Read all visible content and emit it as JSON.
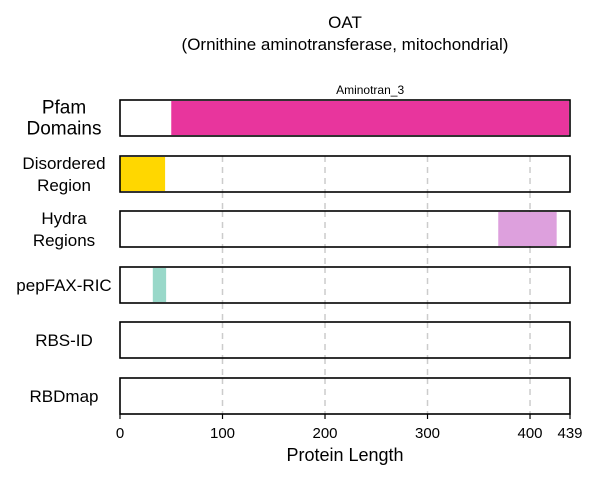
{
  "chart_data": {
    "type": "bar",
    "title": "OAT",
    "subtitle": "(Ornithine aminotransferase, mitochondrial)",
    "xlabel": "Protein Length",
    "xlim": [
      0,
      439
    ],
    "xticks": [
      "0",
      "100",
      "200",
      "300",
      "400",
      "439"
    ],
    "xtick_values": [
      0,
      100,
      200,
      300,
      400,
      439
    ],
    "grid": "vertical dashed at 100, 200, 300, 400",
    "tracks": [
      {
        "label": [
          "Pfam",
          "Domains"
        ],
        "regions": [
          {
            "start": 50,
            "end": 438,
            "color": "#e8359d",
            "label": "Aminotran_3"
          }
        ]
      },
      {
        "label": [
          "Disordered",
          "Region"
        ],
        "regions": [
          {
            "start": 0,
            "end": 44,
            "color": "#ffd700"
          }
        ]
      },
      {
        "label": [
          "Hydra",
          "Regions"
        ],
        "regions": [
          {
            "start": 369,
            "end": 426,
            "color": "#dda0dd"
          }
        ]
      },
      {
        "label": [
          "pepFAX-RIC"
        ],
        "regions": [
          {
            "start": 32,
            "end": 45,
            "color": "#99d8c9"
          }
        ]
      },
      {
        "label": [
          "RBS-ID"
        ],
        "regions": []
      },
      {
        "label": [
          "RBDmap"
        ],
        "regions": []
      }
    ]
  }
}
